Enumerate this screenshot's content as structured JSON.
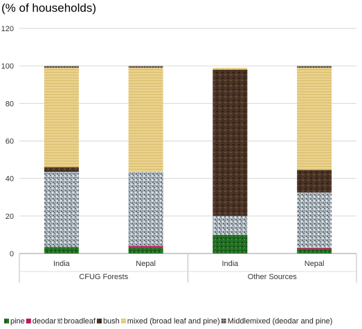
{
  "chart_data": {
    "type": "bar",
    "stacked": true,
    "ylabel": "(% of households)",
    "ylim": [
      0,
      120
    ],
    "yticks": [
      0,
      20,
      40,
      60,
      80,
      100,
      120
    ],
    "grid": true,
    "legend_position": "bottom",
    "categories": [
      {
        "label": "India",
        "group": "CFUG Forests"
      },
      {
        "label": "Nepal",
        "group": "CFUG Forests"
      },
      {
        "label": "India",
        "group": "Other Sources"
      },
      {
        "label": "Nepal",
        "group": "Other Sources"
      }
    ],
    "groups": [
      "CFUG Forests",
      "Other Sources"
    ],
    "series": [
      {
        "name": "pine",
        "color": "#1e6b1e",
        "values": [
          3.5,
          3,
          10,
          2.5
        ]
      },
      {
        "name": "deodar",
        "color": "#c2185b",
        "values": [
          0,
          1,
          0,
          0.5
        ]
      },
      {
        "name": "broadleaf",
        "color": "#a9b4bb",
        "values": [
          40,
          39.5,
          10,
          29.5
        ]
      },
      {
        "name": "bush",
        "color": "#4a3426",
        "values": [
          2.5,
          0,
          78,
          12
        ]
      },
      {
        "name": "mixed (broad leaf and pine)",
        "color": "#e8cf86",
        "values": [
          53,
          55.5,
          1,
          54.5
        ]
      },
      {
        "name": "Middlemixed (deodar and pine)",
        "color": "#8a8272",
        "values": [
          1,
          1,
          0,
          1
        ]
      }
    ]
  }
}
